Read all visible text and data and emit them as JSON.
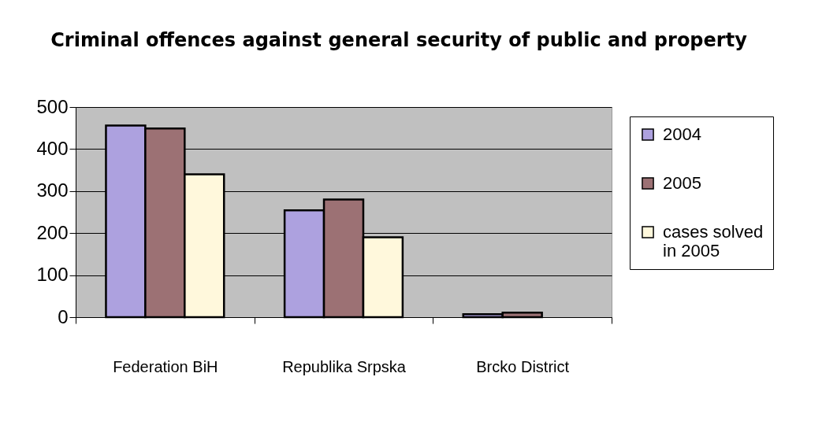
{
  "chart_data": {
    "type": "bar",
    "title": "Criminal offences against general security of public and property",
    "categories": [
      "Federation BiH",
      "Republika Srpska",
      "Brcko District"
    ],
    "series": [
      {
        "name": "2004",
        "color": "#ada1df",
        "values": [
          456,
          254,
          7
        ]
      },
      {
        "name": "2005",
        "color": "#9c7174",
        "values": [
          449,
          280,
          11
        ]
      },
      {
        "name": "cases solved\nin 2005",
        "color": "#fff8dc",
        "values": [
          340,
          190,
          null
        ]
      }
    ],
    "ylim": [
      0,
      500
    ],
    "yticks": [
      0,
      100,
      200,
      300,
      400,
      500
    ],
    "grid": "y",
    "legend": "right"
  }
}
